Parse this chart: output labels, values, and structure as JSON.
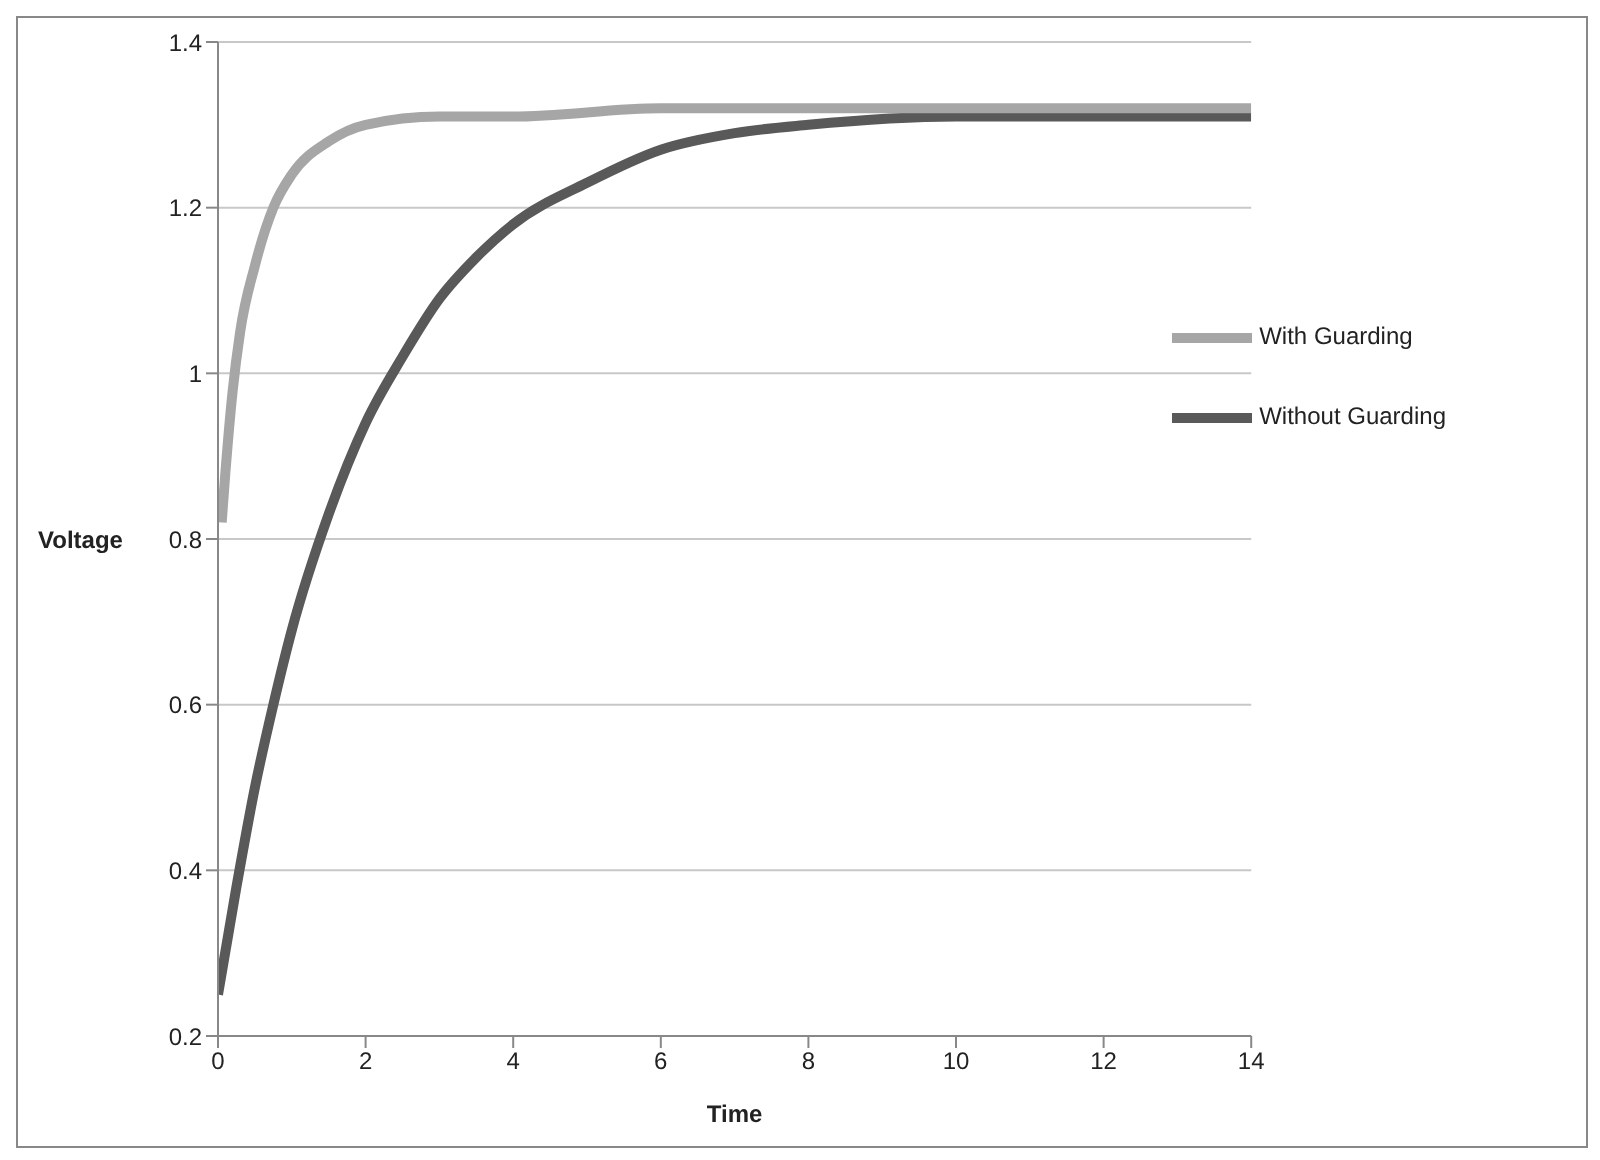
{
  "chart_data": {
    "type": "line",
    "xlabel": "Time",
    "ylabel": "Voltage",
    "xlim": [
      0,
      14
    ],
    "xticks": [
      0,
      2,
      4,
      6,
      8,
      10,
      12,
      14
    ],
    "ylim": [
      0.2,
      1.4
    ],
    "yticks": [
      0.2,
      0.4,
      0.6,
      0.8,
      1,
      1.2,
      1.4
    ],
    "grid": "y",
    "legend": "right",
    "marker": "none",
    "line_style": "solid",
    "series": [
      {
        "name": "Without Guarding",
        "color": "#595959",
        "x": [
          0,
          0.25,
          0.5,
          0.75,
          1,
          1.5,
          2,
          2.5,
          3,
          3.5,
          4,
          5,
          6,
          7,
          8,
          10,
          12,
          14
        ],
        "values": [
          0.25,
          0.38,
          0.5,
          0.6,
          0.69,
          0.83,
          0.94,
          1.02,
          1.09,
          1.14,
          1.18,
          1.23,
          1.27,
          1.29,
          1.3,
          1.31,
          1.31,
          1.31
        ]
      },
      {
        "name": "With Guarding",
        "color": "#a6a6a6",
        "x": [
          0.05,
          0.1,
          0.2,
          0.3,
          0.5,
          0.75,
          1,
          1.5,
          2,
          3,
          4,
          6,
          14
        ],
        "values": [
          0.82,
          0.88,
          0.98,
          1.05,
          1.13,
          1.2,
          1.24,
          1.28,
          1.3,
          1.31,
          1.31,
          1.32,
          1.32
        ]
      }
    ]
  }
}
